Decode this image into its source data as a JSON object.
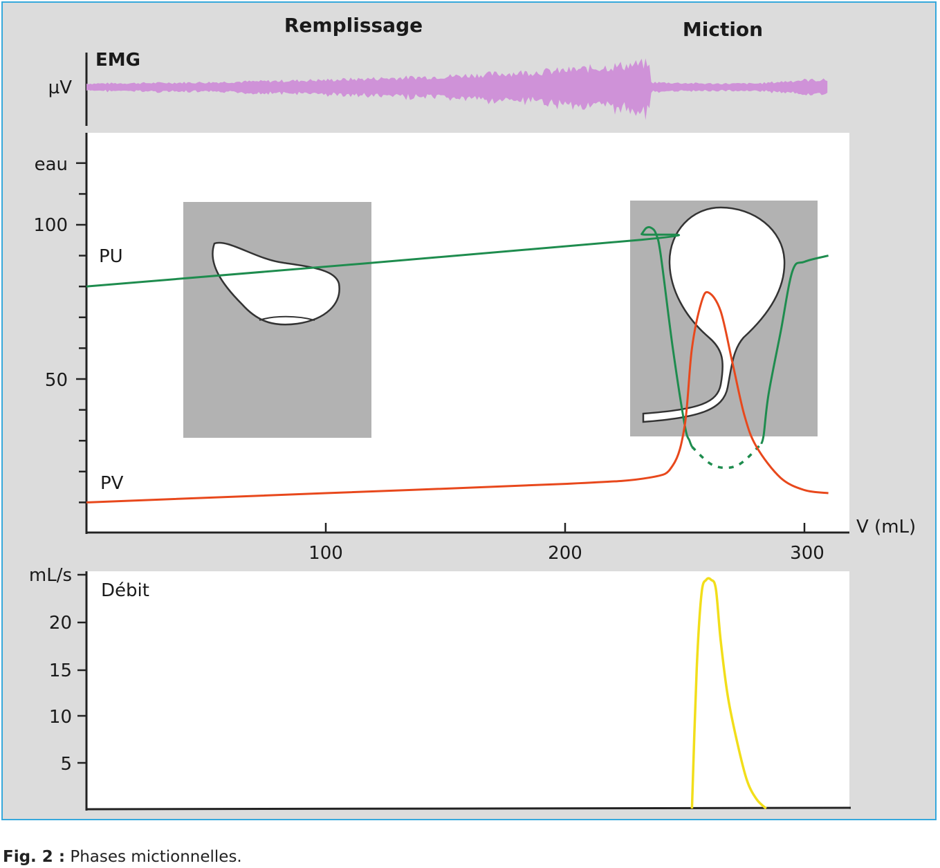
{
  "phases": {
    "filling": "Remplissage",
    "voiding": "Miction"
  },
  "emg": {
    "label": "EMG",
    "unit": "µV"
  },
  "pressure": {
    "ylabel": "eau",
    "yticks": [
      "100",
      "50"
    ],
    "xlabel": "V (mL)",
    "xticks": [
      "100",
      "200",
      "300"
    ],
    "series_labels": {
      "pu": "PU",
      "pv": "PV"
    }
  },
  "flow": {
    "ylabel": "mL/s",
    "title": "Débit",
    "yticks": [
      "20",
      "15",
      "10",
      "5"
    ]
  },
  "caption": {
    "label": "Fig. 2 :",
    "text": "Phases mictionnelles."
  },
  "colors": {
    "pu": "#1e8c4e",
    "pv": "#e8481c",
    "flow": "#f2de1a",
    "emg": "#cf92d8",
    "frame": "#35a8dc",
    "inset": "#b2b2b2"
  },
  "chart_data": [
    {
      "type": "area",
      "name": "EMG",
      "x": [
        0,
        50,
        100,
        150,
        200,
        235,
        236,
        260,
        280,
        300,
        310
      ],
      "amplitude_relative": [
        0.15,
        0.2,
        0.3,
        0.45,
        0.7,
        1.0,
        0.2,
        0.15,
        0.15,
        0.3,
        0.3
      ]
    },
    {
      "type": "line",
      "xlabel": "V (mL)",
      "ylabel": "eau",
      "xlim": [
        0,
        320
      ],
      "ylim": [
        0,
        130
      ],
      "series": [
        {
          "name": "PU",
          "x": [
            0,
            230,
            232,
            234,
            236,
            238,
            240,
            245,
            250,
            252,
            253,
            262,
            272,
            282,
            283,
            285,
            290,
            295,
            300,
            310
          ],
          "y": [
            80,
            95,
            97,
            99,
            99,
            97,
            90,
            60,
            35,
            30,
            28,
            22,
            22,
            29,
            32,
            45,
            65,
            85,
            88,
            90
          ]
        },
        {
          "name": "PV",
          "x": [
            0,
            100,
            200,
            235,
            245,
            250,
            253,
            257,
            260,
            265,
            270,
            275,
            280,
            290,
            300,
            310
          ],
          "y": [
            10,
            13,
            16,
            18,
            22,
            35,
            60,
            75,
            78,
            72,
            55,
            38,
            28,
            18,
            14,
            13
          ]
        }
      ]
    },
    {
      "type": "line",
      "ylabel": "mL/s",
      "title": "Débit",
      "ylim": [
        0,
        25
      ],
      "series": [
        {
          "name": "Débit",
          "x": [
            253,
            255,
            257,
            259,
            261,
            263,
            265,
            268,
            272,
            276,
            280,
            284
          ],
          "y": [
            0,
            15,
            23,
            24.5,
            24.5,
            23.5,
            18,
            12,
            7,
            3,
            1,
            0
          ]
        }
      ]
    }
  ]
}
